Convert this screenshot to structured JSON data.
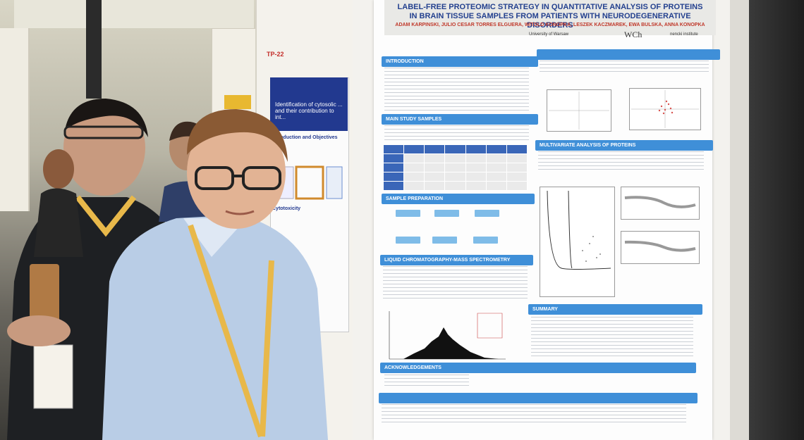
{
  "scene": {
    "description_label": "conference poster session photo"
  },
  "poster_tag": "TP-22",
  "side_poster": {
    "title": "Identification of cytosolic ... and their contribution to int...",
    "section_1": "Introduction and Objectives",
    "section_2": "Cytotoxicity"
  },
  "main_poster": {
    "title_line1": "LABEL-FREE PROTEOMIC STRATEGY IN QUANTITATIVE ANALYSIS OF PROTEINS",
    "title_line2": "IN BRAIN TISSUE SAMPLES FROM PATIENTS WITH NEURODEGENERATIVE DISORDERS",
    "authors": "ADAM KARPINSKI, JULIO CESAR TORRES ELGUERA, WITOLD KONOPKA, LESZEK KACZMAREK, EWA BULSKA, ANNA KONOPKA",
    "logo_1": "University of Warsaw",
    "logo_2": "WCh",
    "logo_3": "nencki institute",
    "sections": [
      "INTRODUCTION",
      "",
      "MAIN STUDY SAMPLES",
      "MULTIVARIATE ANALYSIS OF PROTEINS",
      "SAMPLE PREPARATION",
      "LIQUID CHROMATOGRAPHY-MASS SPECTROMETRY",
      "SUMMARY",
      "ACKNOWLEDGEMENTS",
      ""
    ]
  },
  "colors": {
    "poster_accent": "#3f8fd8",
    "title_blue": "#24418f",
    "authors_red": "#c0392b",
    "lanyard": "#e8b84a"
  }
}
